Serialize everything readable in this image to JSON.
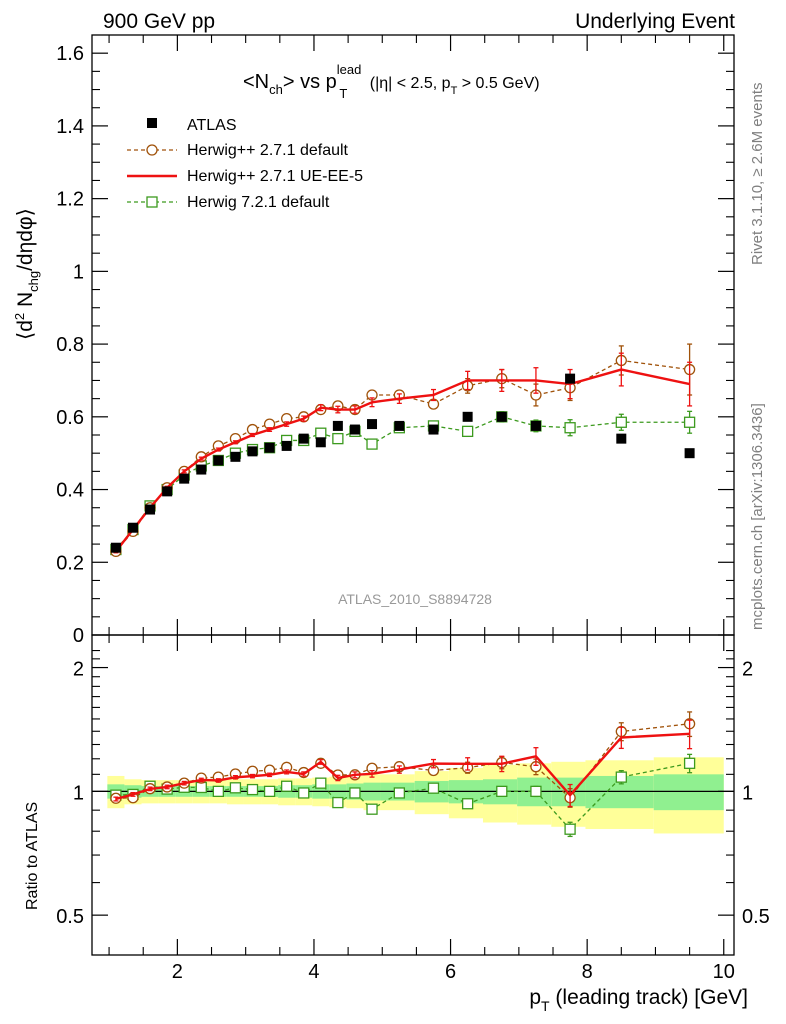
{
  "header": {
    "left": "900 GeV pp",
    "right": "Underlying Event"
  },
  "side_text": {
    "top": "Rivet 3.1.10, ≥ 2.6M events",
    "bottom": "mcplots.cern.ch [arXiv:1306.3436]"
  },
  "analysis_id": "ATLAS_2010_S8894728",
  "colors": {
    "atlas": "#000000",
    "herwig_default": "#a0520a",
    "herwig_ueee5": "#ee1111",
    "herwig72": "#3c9a1e",
    "band_inner": "#90f090",
    "band_outer": "#ffff99"
  },
  "chart_data": [
    {
      "type": "scatter",
      "title_parts": {
        "n": "<N",
        "n_sub": "ch",
        "vs": "> vs p",
        "p_sub": "T",
        "p_sup": "lead",
        "cuts_a": " (|η| < 2.5, p",
        "cuts_sub": "T",
        "cuts_b": " > 0.5 GeV)"
      },
      "ylabel_parts": {
        "a": "⟨d",
        "sup": "2",
        "b": " N",
        "sub": "chg",
        "c": "/dηdφ⟩"
      },
      "ylim": [
        0,
        1.65
      ],
      "yticks": [
        0,
        0.2,
        0.4,
        0.6,
        0.8,
        1,
        1.2,
        1.4,
        1.6
      ],
      "ytick_labels": [
        "0",
        "0.2",
        "0.4",
        "0.6",
        "0.8",
        "1",
        "1.2",
        "1.4",
        "1.6"
      ],
      "x": [
        1.1,
        1.35,
        1.6,
        1.85,
        2.1,
        2.35,
        2.6,
        2.85,
        3.1,
        3.35,
        3.6,
        3.85,
        4.1,
        4.35,
        4.6,
        4.85,
        5.25,
        5.75,
        6.25,
        6.75,
        7.25,
        7.75,
        8.5,
        9.5
      ],
      "x_errors": [
        0.125,
        0.125,
        0.125,
        0.125,
        0.125,
        0.125,
        0.125,
        0.125,
        0.125,
        0.125,
        0.125,
        0.125,
        0.125,
        0.125,
        0.125,
        0.125,
        0.25,
        0.25,
        0.25,
        0.25,
        0.25,
        0.25,
        0.5,
        0.5
      ],
      "series": [
        {
          "name": "ATLAS",
          "marker": "square-filled",
          "values": [
            0.24,
            0.295,
            0.345,
            0.395,
            0.43,
            0.455,
            0.48,
            0.49,
            0.505,
            0.515,
            0.52,
            0.54,
            0.53,
            0.575,
            0.565,
            0.58,
            0.575,
            0.565,
            0.6,
            0.6,
            0.575,
            0.705,
            0.54,
            0.5
          ]
        },
        {
          "name": "Herwig++ 2.7.1 default",
          "marker": "circle-open",
          "line": "dashed",
          "values": [
            0.23,
            0.285,
            0.35,
            0.405,
            0.45,
            0.49,
            0.52,
            0.54,
            0.565,
            0.58,
            0.595,
            0.6,
            0.62,
            0.63,
            0.62,
            0.66,
            0.66,
            0.635,
            0.685,
            0.705,
            0.66,
            0.68,
            0.755,
            0.73
          ],
          "errors": [
            0.004,
            0.004,
            0.004,
            0.004,
            0.004,
            0.004,
            0.004,
            0.004,
            0.004,
            0.004,
            0.005,
            0.006,
            0.006,
            0.007,
            0.008,
            0.009,
            0.01,
            0.012,
            0.02,
            0.025,
            0.03,
            0.035,
            0.04,
            0.07
          ]
        },
        {
          "name": "Herwig++ 2.7.1 UE-EE-5",
          "marker": "none",
          "line": "solid",
          "values": [
            0.23,
            0.29,
            0.35,
            0.405,
            0.45,
            0.485,
            0.51,
            0.53,
            0.55,
            0.565,
            0.58,
            0.595,
            0.625,
            0.62,
            0.62,
            0.64,
            0.65,
            0.66,
            0.7,
            0.7,
            0.7,
            0.69,
            0.73,
            0.69
          ],
          "errors": [
            0.004,
            0.004,
            0.004,
            0.004,
            0.004,
            0.004,
            0.004,
            0.004,
            0.004,
            0.005,
            0.006,
            0.007,
            0.008,
            0.009,
            0.01,
            0.012,
            0.013,
            0.015,
            0.025,
            0.03,
            0.035,
            0.04,
            0.045,
            0.06
          ]
        },
        {
          "name": "Herwig 7.2.1 default",
          "marker": "square-open",
          "line": "dashed",
          "values": [
            0.235,
            0.29,
            0.355,
            0.4,
            0.44,
            0.465,
            0.48,
            0.5,
            0.51,
            0.515,
            0.535,
            0.535,
            0.555,
            0.54,
            0.56,
            0.525,
            0.57,
            0.575,
            0.56,
            0.6,
            0.575,
            0.57,
            0.585,
            0.585
          ],
          "errors": [
            0.004,
            0.004,
            0.004,
            0.004,
            0.004,
            0.004,
            0.004,
            0.004,
            0.004,
            0.005,
            0.005,
            0.006,
            0.006,
            0.007,
            0.007,
            0.008,
            0.009,
            0.01,
            0.012,
            0.014,
            0.016,
            0.022,
            0.022,
            0.03
          ]
        }
      ]
    },
    {
      "type": "scatter",
      "ylabel": "Ratio to ATLAS",
      "xlabel_parts": {
        "p": "p",
        "sub": "T",
        "rest": " (leading track) [GeV]"
      },
      "ylim": [
        0.4,
        2.4
      ],
      "yscale": "log",
      "yticks": [
        0.5,
        1,
        2
      ],
      "ytick_labels": [
        "0.5",
        "1",
        "2"
      ],
      "xlim": [
        0.75,
        10.15
      ],
      "xticks": [
        2,
        4,
        6,
        8,
        10
      ],
      "xtick_labels": [
        "2",
        "4",
        "6",
        "8",
        "10"
      ],
      "reference_line": 1,
      "bands": {
        "edges": [
          0.975,
          1.225,
          1.475,
          1.725,
          1.975,
          2.225,
          2.475,
          2.725,
          2.975,
          3.225,
          3.475,
          3.725,
          3.975,
          4.225,
          4.475,
          4.725,
          4.975,
          5.475,
          5.975,
          6.475,
          6.975,
          7.475,
          7.975,
          8.975,
          10.0
        ],
        "inner": [
          0.04,
          0.035,
          0.03,
          0.03,
          0.03,
          0.03,
          0.03,
          0.03,
          0.03,
          0.03,
          0.035,
          0.035,
          0.04,
          0.04,
          0.045,
          0.05,
          0.05,
          0.06,
          0.065,
          0.07,
          0.08,
          0.08,
          0.09,
          0.1
        ],
        "outer": [
          0.09,
          0.07,
          0.065,
          0.065,
          0.065,
          0.065,
          0.065,
          0.07,
          0.07,
          0.07,
          0.075,
          0.075,
          0.08,
          0.085,
          0.09,
          0.1,
          0.1,
          0.12,
          0.14,
          0.16,
          0.17,
          0.18,
          0.19,
          0.21
        ]
      },
      "series": [
        {
          "name": "Herwig++ 2.7.1 default",
          "values": [
            0.962,
            0.965,
            1.015,
            1.025,
            1.047,
            1.077,
            1.083,
            1.102,
            1.119,
            1.126,
            1.144,
            1.111,
            1.17,
            1.096,
            1.097,
            1.138,
            1.148,
            1.124,
            1.142,
            1.175,
            1.148,
            0.965,
            1.398,
            1.46
          ],
          "errors": [
            0.01,
            0.01,
            0.01,
            0.01,
            0.01,
            0.01,
            0.01,
            0.01,
            0.01,
            0.01,
            0.01,
            0.012,
            0.012,
            0.014,
            0.015,
            0.017,
            0.02,
            0.022,
            0.035,
            0.04,
            0.05,
            0.05,
            0.07,
            0.1
          ]
        },
        {
          "name": "Herwig++ 2.7.1 UE-EE-5",
          "values": [
            0.958,
            0.983,
            1.014,
            1.025,
            1.047,
            1.066,
            1.063,
            1.082,
            1.089,
            1.097,
            1.115,
            1.102,
            1.179,
            1.078,
            1.097,
            1.103,
            1.13,
            1.168,
            1.167,
            1.167,
            1.217,
            0.979,
            1.352,
            1.38
          ],
          "errors": [
            0.01,
            0.01,
            0.01,
            0.01,
            0.01,
            0.01,
            0.01,
            0.01,
            0.01,
            0.01,
            0.012,
            0.013,
            0.015,
            0.016,
            0.018,
            0.02,
            0.023,
            0.027,
            0.04,
            0.05,
            0.06,
            0.06,
            0.08,
            0.11
          ]
        },
        {
          "name": "Herwig 7.2.1 default",
          "values": [
            0.979,
            0.983,
            1.029,
            1.013,
            1.023,
            1.022,
            1.0,
            1.02,
            1.01,
            1.0,
            1.029,
            0.991,
            1.047,
            0.939,
            0.991,
            0.905,
            0.991,
            1.018,
            0.933,
            1.0,
            1.0,
            0.809,
            1.083,
            1.17
          ],
          "errors": [
            0.01,
            0.01,
            0.01,
            0.01,
            0.01,
            0.01,
            0.01,
            0.01,
            0.01,
            0.01,
            0.01,
            0.012,
            0.012,
            0.013,
            0.013,
            0.014,
            0.016,
            0.018,
            0.02,
            0.024,
            0.028,
            0.032,
            0.04,
            0.06
          ]
        }
      ]
    }
  ]
}
